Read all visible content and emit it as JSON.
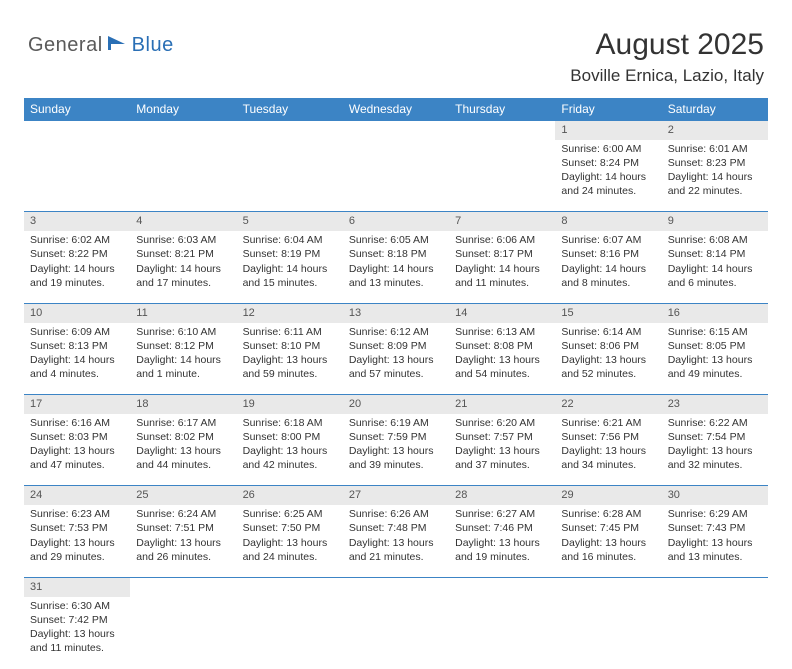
{
  "brand": {
    "part1": "General",
    "part2": "Blue"
  },
  "title": "August 2025",
  "location": "Boville Ernica, Lazio, Italy",
  "colors": {
    "header_bg": "#3c84c5",
    "header_text": "#ffffff",
    "daynum_bg": "#e9e9e9",
    "row_divider": "#3c84c5",
    "body_text": "#333333",
    "logo_gray": "#5a5a5a",
    "logo_blue": "#2a6fb5"
  },
  "typography": {
    "title_fontsize": 30,
    "location_fontsize": 17,
    "header_fontsize": 12,
    "daynum_fontsize": 11,
    "cell_fontsize": 10.5
  },
  "weekdays": [
    "Sunday",
    "Monday",
    "Tuesday",
    "Wednesday",
    "Thursday",
    "Friday",
    "Saturday"
  ],
  "weeks": [
    [
      null,
      null,
      null,
      null,
      null,
      {
        "n": "1",
        "sr": "6:00 AM",
        "ss": "8:24 PM",
        "dl": "14 hours and 24 minutes."
      },
      {
        "n": "2",
        "sr": "6:01 AM",
        "ss": "8:23 PM",
        "dl": "14 hours and 22 minutes."
      }
    ],
    [
      {
        "n": "3",
        "sr": "6:02 AM",
        "ss": "8:22 PM",
        "dl": "14 hours and 19 minutes."
      },
      {
        "n": "4",
        "sr": "6:03 AM",
        "ss": "8:21 PM",
        "dl": "14 hours and 17 minutes."
      },
      {
        "n": "5",
        "sr": "6:04 AM",
        "ss": "8:19 PM",
        "dl": "14 hours and 15 minutes."
      },
      {
        "n": "6",
        "sr": "6:05 AM",
        "ss": "8:18 PM",
        "dl": "14 hours and 13 minutes."
      },
      {
        "n": "7",
        "sr": "6:06 AM",
        "ss": "8:17 PM",
        "dl": "14 hours and 11 minutes."
      },
      {
        "n": "8",
        "sr": "6:07 AM",
        "ss": "8:16 PM",
        "dl": "14 hours and 8 minutes."
      },
      {
        "n": "9",
        "sr": "6:08 AM",
        "ss": "8:14 PM",
        "dl": "14 hours and 6 minutes."
      }
    ],
    [
      {
        "n": "10",
        "sr": "6:09 AM",
        "ss": "8:13 PM",
        "dl": "14 hours and 4 minutes."
      },
      {
        "n": "11",
        "sr": "6:10 AM",
        "ss": "8:12 PM",
        "dl": "14 hours and 1 minute."
      },
      {
        "n": "12",
        "sr": "6:11 AM",
        "ss": "8:10 PM",
        "dl": "13 hours and 59 minutes."
      },
      {
        "n": "13",
        "sr": "6:12 AM",
        "ss": "8:09 PM",
        "dl": "13 hours and 57 minutes."
      },
      {
        "n": "14",
        "sr": "6:13 AM",
        "ss": "8:08 PM",
        "dl": "13 hours and 54 minutes."
      },
      {
        "n": "15",
        "sr": "6:14 AM",
        "ss": "8:06 PM",
        "dl": "13 hours and 52 minutes."
      },
      {
        "n": "16",
        "sr": "6:15 AM",
        "ss": "8:05 PM",
        "dl": "13 hours and 49 minutes."
      }
    ],
    [
      {
        "n": "17",
        "sr": "6:16 AM",
        "ss": "8:03 PM",
        "dl": "13 hours and 47 minutes."
      },
      {
        "n": "18",
        "sr": "6:17 AM",
        "ss": "8:02 PM",
        "dl": "13 hours and 44 minutes."
      },
      {
        "n": "19",
        "sr": "6:18 AM",
        "ss": "8:00 PM",
        "dl": "13 hours and 42 minutes."
      },
      {
        "n": "20",
        "sr": "6:19 AM",
        "ss": "7:59 PM",
        "dl": "13 hours and 39 minutes."
      },
      {
        "n": "21",
        "sr": "6:20 AM",
        "ss": "7:57 PM",
        "dl": "13 hours and 37 minutes."
      },
      {
        "n": "22",
        "sr": "6:21 AM",
        "ss": "7:56 PM",
        "dl": "13 hours and 34 minutes."
      },
      {
        "n": "23",
        "sr": "6:22 AM",
        "ss": "7:54 PM",
        "dl": "13 hours and 32 minutes."
      }
    ],
    [
      {
        "n": "24",
        "sr": "6:23 AM",
        "ss": "7:53 PM",
        "dl": "13 hours and 29 minutes."
      },
      {
        "n": "25",
        "sr": "6:24 AM",
        "ss": "7:51 PM",
        "dl": "13 hours and 26 minutes."
      },
      {
        "n": "26",
        "sr": "6:25 AM",
        "ss": "7:50 PM",
        "dl": "13 hours and 24 minutes."
      },
      {
        "n": "27",
        "sr": "6:26 AM",
        "ss": "7:48 PM",
        "dl": "13 hours and 21 minutes."
      },
      {
        "n": "28",
        "sr": "6:27 AM",
        "ss": "7:46 PM",
        "dl": "13 hours and 19 minutes."
      },
      {
        "n": "29",
        "sr": "6:28 AM",
        "ss": "7:45 PM",
        "dl": "13 hours and 16 minutes."
      },
      {
        "n": "30",
        "sr": "6:29 AM",
        "ss": "7:43 PM",
        "dl": "13 hours and 13 minutes."
      }
    ],
    [
      {
        "n": "31",
        "sr": "6:30 AM",
        "ss": "7:42 PM",
        "dl": "13 hours and 11 minutes."
      },
      null,
      null,
      null,
      null,
      null,
      null
    ]
  ],
  "labels": {
    "sunrise": "Sunrise:",
    "sunset": "Sunset:",
    "daylight": "Daylight:"
  }
}
